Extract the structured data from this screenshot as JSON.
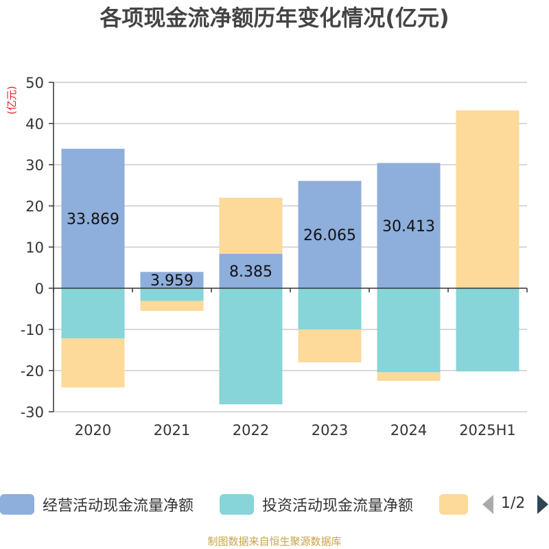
{
  "title": "各项现金流净额历年变化情况(亿元)",
  "unit_label": "(亿元)",
  "footer": "制图数据来自恒生聚源数据库",
  "legend": {
    "page": "1/2",
    "items": [
      {
        "label": "经营活动现金流量净额",
        "color": "#8eaedb"
      },
      {
        "label": "投资活动现金流量净额",
        "color": "#87d5d8"
      },
      {
        "label": "",
        "color": "#fdd99a"
      }
    ]
  },
  "colors": {
    "axis": "#333333",
    "grid": "#cccccc",
    "unit_label": "#e02020",
    "footer": "#c9a24a"
  },
  "chart_data": {
    "type": "bar",
    "stacked": true,
    "title": "各项现金流净额历年变化情况(亿元)",
    "ylabel": "(亿元)",
    "xlabel": "",
    "categories": [
      "2020",
      "2021",
      "2022",
      "2023",
      "2024",
      "2025H1"
    ],
    "ylim": [
      -30,
      50
    ],
    "yticks": [
      50,
      40,
      30,
      20,
      10,
      0,
      -10,
      -20,
      -30
    ],
    "grid": true,
    "legend_position": "bottom",
    "series": [
      {
        "name": "经营活动现金流量净额",
        "color": "#8eaedb",
        "values": [
          33.869,
          3.959,
          8.385,
          26.065,
          30.413,
          0.1
        ],
        "data_labels": [
          "33.869",
          "3.959",
          "8.385",
          "26.065",
          "30.413",
          null
        ]
      },
      {
        "name": "投资活动现金流量净额",
        "color": "#87d5d8",
        "values": [
          -12.2,
          -3.1,
          -28.2,
          -10.0,
          -20.4,
          -20.2
        ],
        "data_labels": [
          null,
          null,
          null,
          null,
          null,
          null
        ]
      },
      {
        "name": "",
        "color": "#fdd99a",
        "values": [
          -11.9,
          -2.4,
          13.6,
          -8.0,
          -2.1,
          43.1
        ],
        "data_labels": [
          null,
          null,
          null,
          null,
          null,
          null
        ]
      }
    ]
  }
}
